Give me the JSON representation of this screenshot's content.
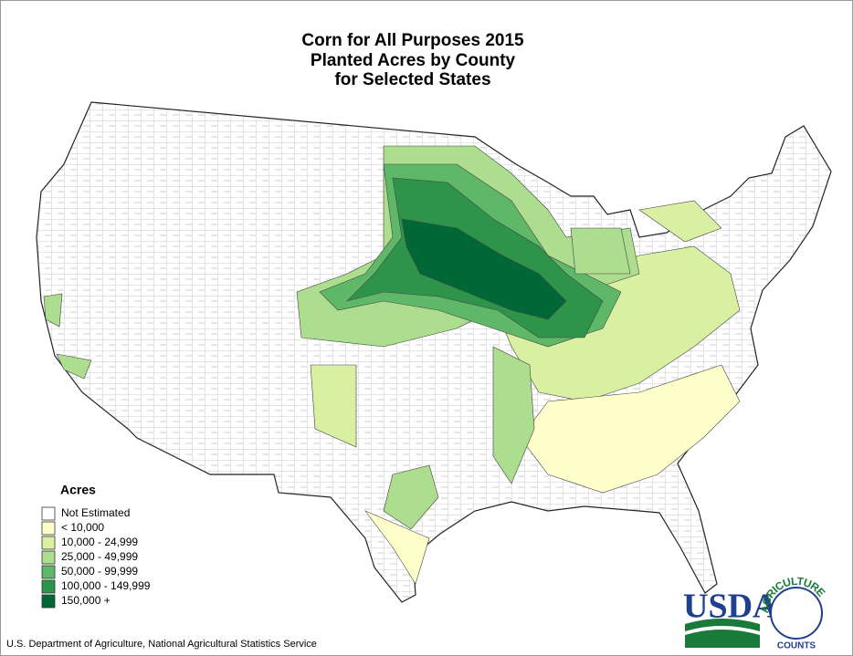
{
  "title": [
    "Corn for All Purposes 2015",
    "Planted Acres by County",
    "for Selected States"
  ],
  "legend": {
    "title": "Acres",
    "items": [
      {
        "label": "Not Estimated",
        "color": "#ffffff"
      },
      {
        "label": "< 10,000",
        "color": "#ffffcc"
      },
      {
        "label": "10,000 - 24,999",
        "color": "#d9f0a3"
      },
      {
        "label": "25,000 - 49,999",
        "color": "#addd8e"
      },
      {
        "label": "50,000 - 99,999",
        "color": "#5fb768"
      },
      {
        "label": "100,000 - 149,999",
        "color": "#2e9449"
      },
      {
        "label": "150,000 +",
        "color": "#006837"
      }
    ]
  },
  "footer": "U.S. Department of Agriculture, National Agricultural Statistics Service",
  "logo": {
    "name": "USDA",
    "ring": "AGRICULTURE",
    "sub": "COUNTS"
  }
}
